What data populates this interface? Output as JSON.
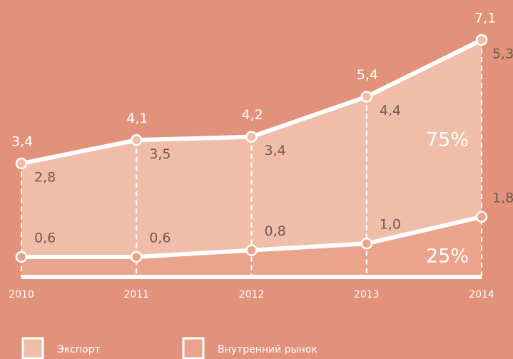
{
  "chart_data": {
    "type": "stacked_area",
    "categories": [
      "2010",
      "2011",
      "2012",
      "2013",
      "2014"
    ],
    "series": [
      {
        "name": "Экспорт",
        "color": "#f0bea8",
        "values": [
          2.8,
          3.5,
          3.4,
          4.4,
          5.3
        ],
        "value_labels": [
          "2,8",
          "3,5",
          "3,4",
          "4,4",
          "5,3"
        ]
      },
      {
        "name": "Внутренний рынок",
        "color": "#eaa48c",
        "values": [
          0.6,
          0.6,
          0.8,
          1.0,
          1.8
        ],
        "value_labels": [
          "0,6",
          "0,6",
          "0,8",
          "1,0",
          "1,8"
        ]
      }
    ],
    "totals": [
      3.4,
      4.1,
      4.2,
      5.4,
      7.1
    ],
    "total_labels": [
      "3,4",
      "4,1",
      "4,2",
      "5,4",
      "7,1"
    ],
    "annotations": [
      "75%",
      "25%"
    ]
  }
}
